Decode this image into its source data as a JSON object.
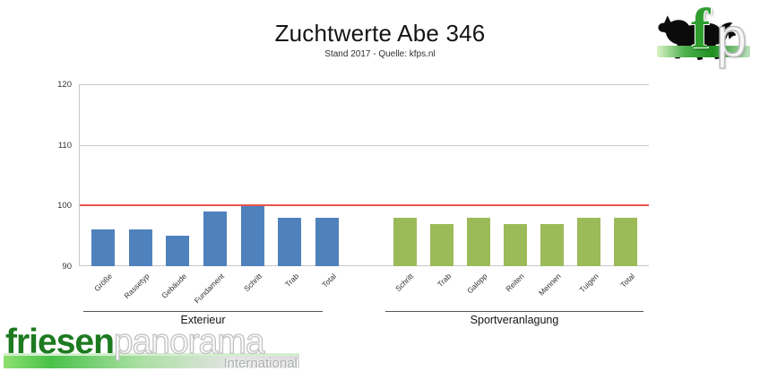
{
  "chart_data": {
    "type": "bar",
    "title": "Zuchtwerte Abe 346",
    "subtitle": "Stand 2017 - Quelle: kfps.nl",
    "ylim": [
      90,
      120
    ],
    "yticks": [
      90,
      100,
      110,
      120
    ],
    "grid": true,
    "legend_position": "none",
    "reference_line": {
      "value": 100,
      "color": "#e8534e"
    },
    "groups": [
      {
        "label": "Exterieur",
        "bar_color": "#4f81bd",
        "categories": [
          "Größe",
          "Rassetyp",
          "Gebäude",
          "Fundament",
          "Schritt",
          "Trab",
          "Total"
        ],
        "values": [
          96,
          96,
          95,
          99,
          100,
          98,
          98
        ]
      },
      {
        "label": "Sportveranlagung",
        "bar_color": "#9bbb59",
        "categories": [
          "Schritt",
          "Trab",
          "Galopp",
          "Reiten",
          "Mennen",
          "Tuigen",
          "Total"
        ],
        "values": [
          98,
          97,
          98,
          97,
          97,
          98,
          98
        ]
      }
    ]
  },
  "branding": {
    "corner_logo": {
      "letter_f": "f",
      "letter_p": "p"
    },
    "footer_logo": {
      "word_green": "friesen",
      "word_gray": "panorama",
      "subtitle": "International"
    }
  },
  "colors": {
    "bar_blue": "#4f81bd",
    "bar_green": "#9bbb59",
    "reference_red": "#e8534e",
    "gridline": "#c9c9c9",
    "logo_green": "#1d7a1f"
  }
}
